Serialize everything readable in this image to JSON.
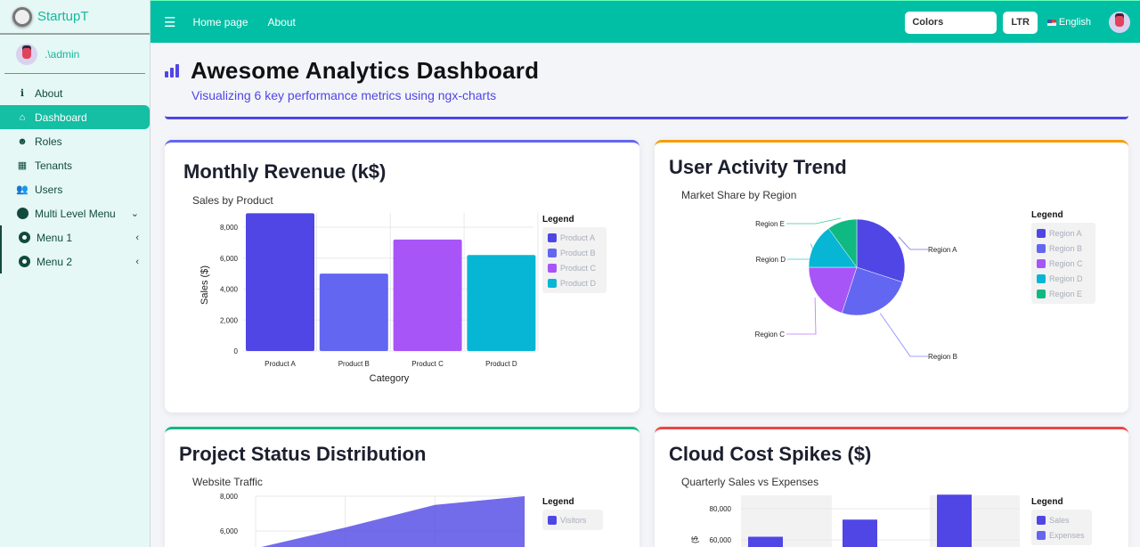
{
  "app": {
    "brand": "StartupT",
    "user": ".\\admin"
  },
  "sidebar": {
    "items": [
      {
        "label": "About",
        "icon": "info-icon"
      },
      {
        "label": "Dashboard",
        "icon": "home-icon",
        "active": true
      },
      {
        "label": "Roles",
        "icon": "masks-icon"
      },
      {
        "label": "Tenants",
        "icon": "building-icon"
      },
      {
        "label": "Users",
        "icon": "users-icon"
      },
      {
        "label": "Multi Level Menu",
        "icon": "circle-icon",
        "chevron": "down"
      },
      {
        "label": "Menu 1",
        "icon": "ring-icon",
        "chevron": "left"
      },
      {
        "label": "Menu 2",
        "icon": "ring-icon",
        "chevron": "left"
      }
    ]
  },
  "header": {
    "links": [
      "Home page",
      "About"
    ],
    "colors_label": "Colors",
    "dir_label": "LTR",
    "language": "English"
  },
  "page": {
    "title": "Awesome Analytics Dashboard",
    "subtitle": "Visualizing 6 key performance metrics using ngx-charts",
    "accent": "#4f46e5"
  },
  "cards": [
    {
      "heading": "Monthly Revenue (k$)",
      "border": "#6366f1"
    },
    {
      "heading": "User Activity Trend",
      "border": "#f59e0b"
    },
    {
      "heading": "Project Status Distribution",
      "border": "#10b981"
    },
    {
      "heading": "Cloud Cost Spikes ($)",
      "border": "#ef4444"
    }
  ],
  "chart_data": [
    {
      "type": "bar",
      "title": "Sales by Product",
      "xlabel": "Category",
      "ylabel": "Sales ($)",
      "categories": [
        "Product A",
        "Product B",
        "Product C",
        "Product D"
      ],
      "values": [
        8900,
        5000,
        7200,
        6200
      ],
      "colors": [
        "#4f46e5",
        "#6366f1",
        "#a855f7",
        "#06b6d4"
      ],
      "ylim": [
        0,
        8900
      ],
      "yticks": [
        "0",
        "2,000",
        "4,000",
        "6,000",
        "8,000"
      ],
      "grid": true,
      "legend": {
        "title": "Legend",
        "position": "right",
        "entries": [
          "Product A",
          "Product B",
          "Product C",
          "Product D"
        ]
      }
    },
    {
      "type": "pie",
      "title": "Market Share by Region",
      "labels": [
        "Region A",
        "Region B",
        "Region C",
        "Region D",
        "Region E"
      ],
      "values": [
        30,
        25,
        20,
        15,
        10
      ],
      "colors": [
        "#4f46e5",
        "#6366f1",
        "#a855f7",
        "#06b6d4",
        "#10b981"
      ],
      "legend": {
        "title": "Legend",
        "position": "right",
        "entries": [
          "Region A",
          "Region B",
          "Region C",
          "Region D",
          "Region E"
        ]
      }
    },
    {
      "type": "area",
      "title": "Website Traffic",
      "series": [
        {
          "name": "Visitors",
          "values": [
            5000,
            6200,
            7500,
            8000
          ]
        }
      ],
      "color": "#4f46e5",
      "yticks": [
        "8,000",
        "6,000"
      ],
      "grid": true,
      "legend": {
        "title": "Legend",
        "position": "right",
        "entries": [
          "Visitors"
        ]
      }
    },
    {
      "type": "bar",
      "title": "Quarterly Sales vs Expenses",
      "series": [
        {
          "name": "Sales",
          "values": [
            62000,
            73000,
            89000
          ]
        },
        {
          "name": "Expenses",
          "values": []
        }
      ],
      "colors": [
        "#4f46e5",
        "#6366f1"
      ],
      "yticks": [
        "80,000",
        "60,000"
      ],
      "grid": true,
      "legend": {
        "title": "Legend",
        "position": "right",
        "entries": [
          "Sales",
          "Expenses"
        ]
      }
    }
  ]
}
